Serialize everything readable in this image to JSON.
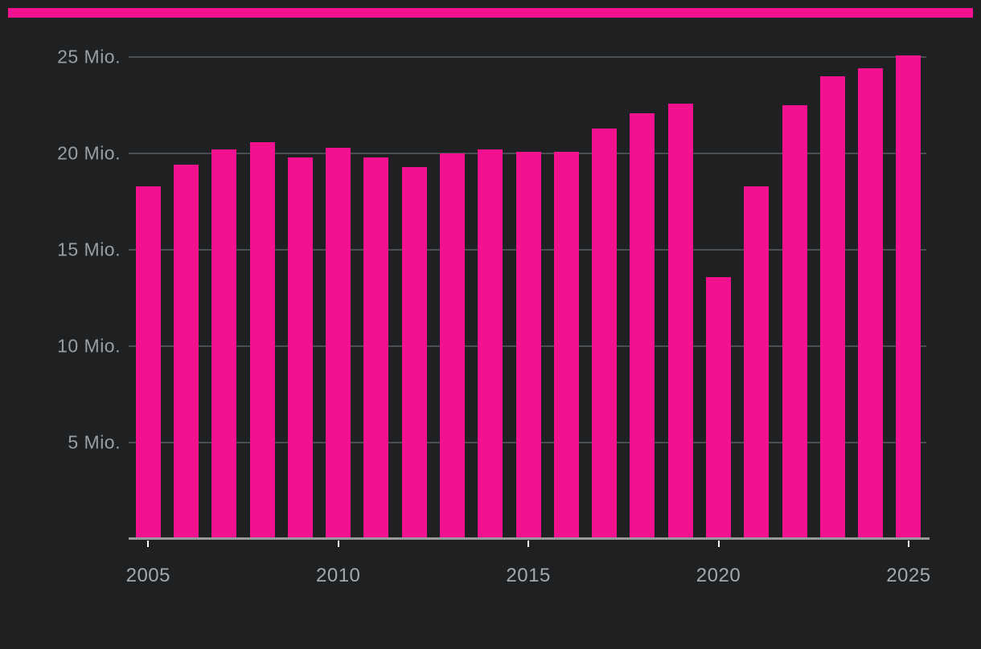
{
  "colors": {
    "background": "#1E2022",
    "stripe": "#F2118F",
    "bar": "#F2118F",
    "gridline": "#4B4E50",
    "axis_line": "#97999B",
    "tick_mark": "#FFFFFF",
    "y_label": "#9B9EA0",
    "x_label": "#A5A8AA"
  },
  "chart_data": {
    "type": "bar",
    "categories": [
      "2005",
      "2006",
      "2007",
      "2008",
      "2009",
      "2010",
      "2011",
      "2012",
      "2013",
      "2014",
      "2015",
      "2016",
      "2017",
      "2018",
      "2019",
      "2020",
      "2021",
      "2022",
      "2023",
      "2024",
      "2025"
    ],
    "values": [
      18.3,
      19.4,
      20.2,
      20.6,
      19.8,
      20.3,
      19.8,
      19.3,
      20.0,
      20.2,
      20.1,
      20.1,
      21.3,
      22.1,
      22.6,
      13.6,
      18.3,
      22.5,
      24.0,
      24.4,
      25.1
    ],
    "unit": "Mio.",
    "y_ticks": [
      {
        "value": 5,
        "label": "5 Mio."
      },
      {
        "value": 10,
        "label": "10 Mio."
      },
      {
        "value": 15,
        "label": "15 Mio."
      },
      {
        "value": 20,
        "label": "20 Mio."
      },
      {
        "value": 25,
        "label": "25 Mio."
      }
    ],
    "x_tick_labels": [
      "2005",
      "2010",
      "2015",
      "2020",
      "2025"
    ],
    "ylim": [
      0,
      25
    ],
    "grid": true,
    "legend": "none",
    "bar_color": "#F2118F"
  }
}
